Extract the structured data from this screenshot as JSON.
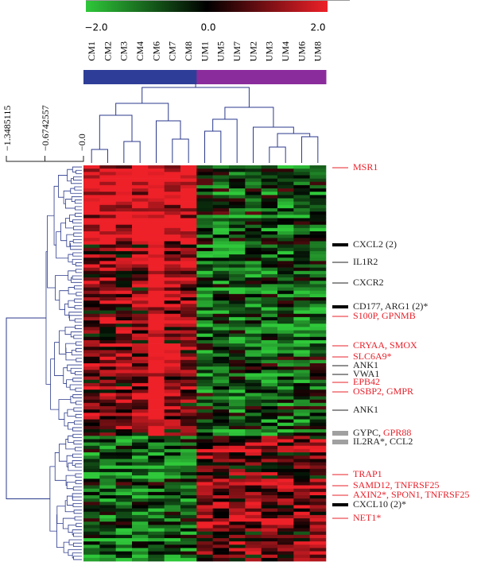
{
  "colorbar": {
    "ticks": [
      "−2.0",
      "0.0",
      "2.0"
    ],
    "colors": [
      "#2fc83a",
      "#000000",
      "#ee2028"
    ]
  },
  "row_dendrogram_scale": [
    "−1.3485115",
    "−0.6742557",
    "−0.0"
  ],
  "groups": [
    {
      "name": "CM",
      "color": "#2e3e98"
    },
    {
      "name": "UM",
      "color": "#8b2c9c"
    }
  ],
  "samples": [
    "CM1",
    "CM2",
    "CM3",
    "CM4",
    "CM6",
    "CM7",
    "CM8",
    "UM1",
    "UM5",
    "UM7",
    "UM2",
    "UM3",
    "UM4",
    "UM6",
    "UM8"
  ],
  "dendrogram_color": "#2b3a8c",
  "genes": [
    {
      "parts": [
        {
          "text": "MSR1",
          "color": "#e8202a"
        }
      ]
    },
    {
      "parts": [
        {
          "text": "CXCL2 (2)",
          "color": "#222222"
        }
      ]
    },
    {
      "parts": [
        {
          "text": "IL1R2",
          "color": "#222222"
        }
      ]
    },
    {
      "parts": [
        {
          "text": "CXCR2",
          "color": "#222222"
        }
      ]
    },
    {
      "parts": [
        {
          "text": "CD177, ARG1 (2)*",
          "color": "#222222"
        }
      ]
    },
    {
      "parts": [
        {
          "text": "S100P, GPNMB",
          "color": "#e8202a"
        }
      ]
    },
    {
      "parts": [
        {
          "text": "CRYAA, SMOX",
          "color": "#e8202a"
        }
      ]
    },
    {
      "parts": [
        {
          "text": "SLC6A9*",
          "color": "#e8202a"
        }
      ]
    },
    {
      "parts": [
        {
          "text": "ANK1",
          "color": "#222222"
        }
      ]
    },
    {
      "parts": [
        {
          "text": "VWA1",
          "color": "#222222"
        }
      ]
    },
    {
      "parts": [
        {
          "text": "EPB42",
          "color": "#e8202a"
        }
      ]
    },
    {
      "parts": [
        {
          "text": "OSBP2, GMPR",
          "color": "#e8202a"
        }
      ]
    },
    {
      "parts": [
        {
          "text": "ANK1",
          "color": "#222222"
        }
      ]
    },
    {
      "parts": [
        {
          "text": "GYPC, ",
          "color": "#222222"
        },
        {
          "text": "GPR88",
          "color": "#e8202a"
        }
      ]
    },
    {
      "parts": [
        {
          "text": "IL2RA*, CCL2",
          "color": "#222222"
        }
      ]
    },
    {
      "parts": [
        {
          "text": "TRAP1",
          "color": "#e8202a"
        }
      ]
    },
    {
      "parts": [
        {
          "text": "SAMD12, TNFRSF25",
          "color": "#e8202a"
        }
      ]
    },
    {
      "parts": [
        {
          "text": "AXIN2*, SPON1, TNFRSF25",
          "color": "#e8202a"
        }
      ]
    },
    {
      "parts": [
        {
          "text": "CXCL10 (2)*",
          "color": "#222222"
        }
      ]
    },
    {
      "parts": [
        {
          "text": "NET1*",
          "color": "#e8202a"
        }
      ]
    }
  ]
}
